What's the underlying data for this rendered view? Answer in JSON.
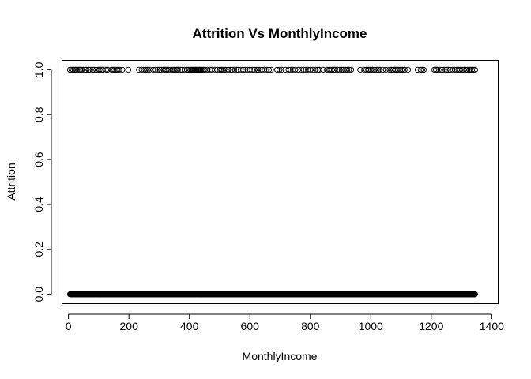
{
  "chart_data": {
    "type": "scatter",
    "title": "Attrition Vs MonthlyIncome",
    "xlabel": "MonthlyIncome",
    "ylabel": "Attrition",
    "xlim": [
      -20,
      1420
    ],
    "ylim": [
      -0.04,
      1.04
    ],
    "x_ticks": [
      0,
      200,
      400,
      600,
      800,
      1000,
      1200,
      1400
    ],
    "x_tick_labels": [
      "0",
      "200",
      "400",
      "600",
      "800",
      "1000",
      "1200",
      "1400"
    ],
    "y_ticks": [
      0.0,
      0.2,
      0.4,
      0.6,
      0.8,
      1.0
    ],
    "y_tick_labels": [
      "0.0",
      "0.2",
      "0.4",
      "0.6",
      "0.8",
      "1.0"
    ],
    "grid": false,
    "legend": "none",
    "marker": "open-circle",
    "series": [
      {
        "values_at_0": {
          "x_min": 5,
          "x_max": 1345,
          "step": 1,
          "y": 0
        },
        "points_at_1": {
          "y": 1,
          "x": [
            5,
            10,
            15,
            20,
            23,
            28,
            34,
            38,
            42,
            48,
            55,
            60,
            67,
            72,
            80,
            85,
            92,
            98,
            103,
            108,
            113,
            125,
            130,
            143,
            148,
            152,
            158,
            163,
            168,
            178,
            198,
            233,
            242,
            250,
            255,
            262,
            268,
            280,
            288,
            296,
            302,
            307,
            315,
            320,
            325,
            330,
            338,
            344,
            349,
            353,
            358,
            362,
            370,
            376,
            384,
            392,
            397,
            402,
            406,
            410,
            413,
            416,
            419,
            422,
            425,
            428,
            431,
            434,
            437,
            440,
            444,
            448,
            452,
            460,
            468,
            475,
            485,
            492,
            500,
            505,
            510,
            515,
            520,
            528,
            535,
            540,
            548,
            556,
            562,
            570,
            578,
            585,
            592,
            600,
            608,
            615,
            622,
            627,
            633,
            640,
            648,
            656,
            663,
            670,
            690,
            698,
            705,
            718,
            728,
            735,
            742,
            750,
            760,
            770,
            778,
            785,
            792,
            800,
            808,
            818,
            825,
            830,
            842,
            855,
            862,
            866,
            872,
            878,
            882,
            890,
            897,
            904,
            910,
            916,
            922,
            928,
            935,
            965,
            978,
            985,
            991,
            996,
            1001,
            1006,
            1012,
            1020,
            1025,
            1030,
            1040,
            1050,
            1062,
            1068,
            1074,
            1080,
            1085,
            1090,
            1097,
            1102,
            1107,
            1112,
            1123,
            1155,
            1165,
            1170,
            1175,
            1210,
            1215,
            1220,
            1230,
            1236,
            1242,
            1250,
            1256,
            1262,
            1270,
            1278,
            1285,
            1290,
            1296,
            1302,
            1308,
            1315,
            1320,
            1326,
            1330,
            1335,
            1340,
            1345
          ]
        }
      }
    ]
  }
}
